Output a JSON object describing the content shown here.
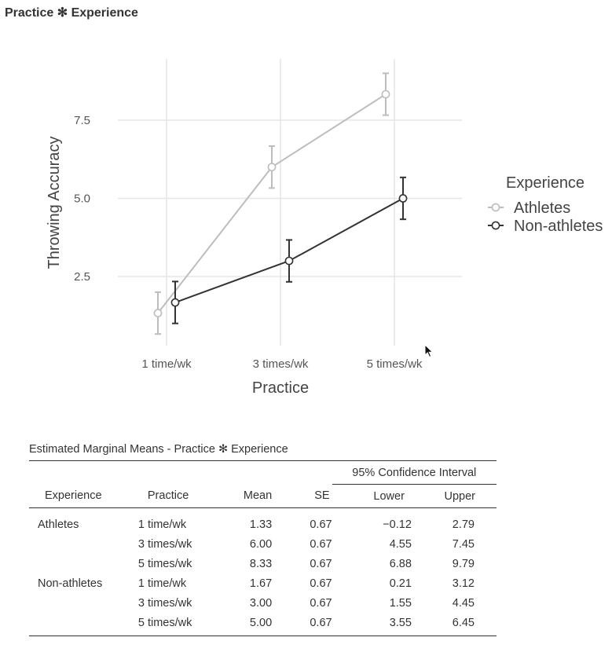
{
  "section": {
    "title": "Practice ✻ Experience"
  },
  "chart_data": {
    "type": "line",
    "xlabel": "Practice",
    "ylabel": "Throwing Accuracy",
    "categories": [
      "1 time/wk",
      "3 times/wk",
      "5 times/wk"
    ],
    "yticks": [
      2.5,
      5.0,
      7.5
    ],
    "ytick_labels": [
      "2.5",
      "5.0",
      "7.5"
    ],
    "ylim": [
      0.3,
      9.4
    ],
    "grid": true,
    "legend_title": "Experience",
    "legend_position": "right",
    "series": [
      {
        "name": "Athletes",
        "color": "#bdbdbd",
        "values": [
          1.33,
          6.0,
          8.33
        ],
        "lower": [
          0.66,
          5.33,
          7.66
        ],
        "upper": [
          2.0,
          6.67,
          9.0
        ]
      },
      {
        "name": "Non-athletes",
        "color": "#333333",
        "values": [
          1.67,
          3.0,
          5.0
        ],
        "lower": [
          1.0,
          2.33,
          4.33
        ],
        "upper": [
          2.34,
          3.67,
          5.67
        ]
      }
    ]
  },
  "table": {
    "title": "Estimated Marginal Means - Practice ✻ Experience",
    "ci_header": "95% Confidence Interval",
    "columns": [
      "Experience",
      "Practice",
      "Mean",
      "SE",
      "Lower",
      "Upper"
    ],
    "rows": [
      [
        "Athletes",
        "1 time/wk",
        "1.33",
        "0.67",
        "−0.12",
        "2.79"
      ],
      [
        "",
        "3 times/wk",
        "6.00",
        "0.67",
        "4.55",
        "7.45"
      ],
      [
        "",
        "5 times/wk",
        "8.33",
        "0.67",
        "6.88",
        "9.79"
      ],
      [
        "Non-athletes",
        "1 time/wk",
        "1.67",
        "0.67",
        "0.21",
        "3.12"
      ],
      [
        "",
        "3 times/wk",
        "3.00",
        "0.67",
        "1.55",
        "4.45"
      ],
      [
        "",
        "5 times/wk",
        "5.00",
        "0.67",
        "3.55",
        "6.45"
      ]
    ]
  }
}
